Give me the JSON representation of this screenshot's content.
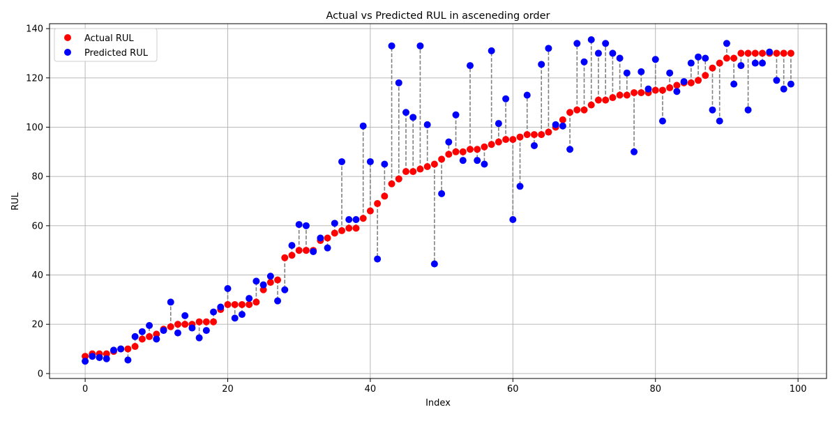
{
  "chart_data": {
    "type": "scatter",
    "title": "Actual vs Predicted RUL in asceneding order",
    "xlabel": "Index",
    "ylabel": "RUL",
    "xlim": [
      -5,
      104
    ],
    "ylim": [
      -2,
      142
    ],
    "xticks": [
      0,
      20,
      40,
      60,
      80,
      100
    ],
    "yticks": [
      0,
      20,
      40,
      60,
      80,
      100,
      120,
      140
    ],
    "grid": true,
    "legend_position": "top-left",
    "connector_style": "dashed gray line between actual and predicted",
    "series": [
      {
        "name": "Actual RUL",
        "color": "#ff0000",
        "values": [
          7,
          8,
          8,
          8,
          9,
          10,
          10,
          11,
          14,
          15,
          16,
          18,
          19,
          20,
          20,
          20,
          21,
          21,
          21,
          26,
          28,
          28,
          28,
          28,
          29,
          34,
          37,
          38,
          47,
          48,
          50,
          50,
          50,
          54,
          55,
          57,
          58,
          59,
          59,
          63,
          66,
          69,
          72,
          77,
          79,
          82,
          82,
          83,
          84,
          85,
          87,
          89,
          90,
          90,
          91,
          91,
          92,
          93,
          94,
          95,
          95,
          96,
          97,
          97,
          97,
          98,
          100,
          103,
          106,
          107,
          107,
          109,
          111,
          111,
          112,
          113,
          113,
          114,
          114,
          114,
          115,
          115,
          116,
          117,
          118,
          118,
          119,
          121,
          124,
          126,
          128,
          128,
          130,
          130,
          130,
          130,
          130,
          130,
          130,
          130
        ]
      },
      {
        "name": "Predicted RUL",
        "color": "#0000ff",
        "values": [
          5,
          7,
          6.5,
          6,
          9.5,
          10,
          5.5,
          15,
          17,
          19.5,
          14,
          17.5,
          29,
          16.5,
          23.5,
          18.5,
          14.5,
          17.5,
          25,
          27,
          34.5,
          22.5,
          24,
          30.5,
          37.5,
          36,
          39.5,
          29.5,
          34,
          52,
          60.5,
          60,
          49.5,
          55,
          51,
          61,
          86,
          62.5,
          62.5,
          100.5,
          86,
          46.5,
          85,
          133,
          118,
          106,
          104,
          133,
          101,
          44.5,
          73,
          94,
          105,
          86.5,
          125,
          86.5,
          85,
          131,
          101.5,
          111.5,
          62.5,
          76,
          113,
          92.5,
          125.5,
          132,
          101,
          100.5,
          91,
          134,
          126.5,
          135.5,
          130,
          134,
          130,
          128,
          122,
          90,
          122.5,
          115.5,
          127.5,
          102.5,
          122,
          114.5,
          118.5,
          126,
          128.5,
          128,
          107,
          102.5,
          134,
          117.5,
          125,
          107,
          126,
          126,
          130.5,
          119,
          115.5,
          117.5
        ]
      }
    ]
  }
}
